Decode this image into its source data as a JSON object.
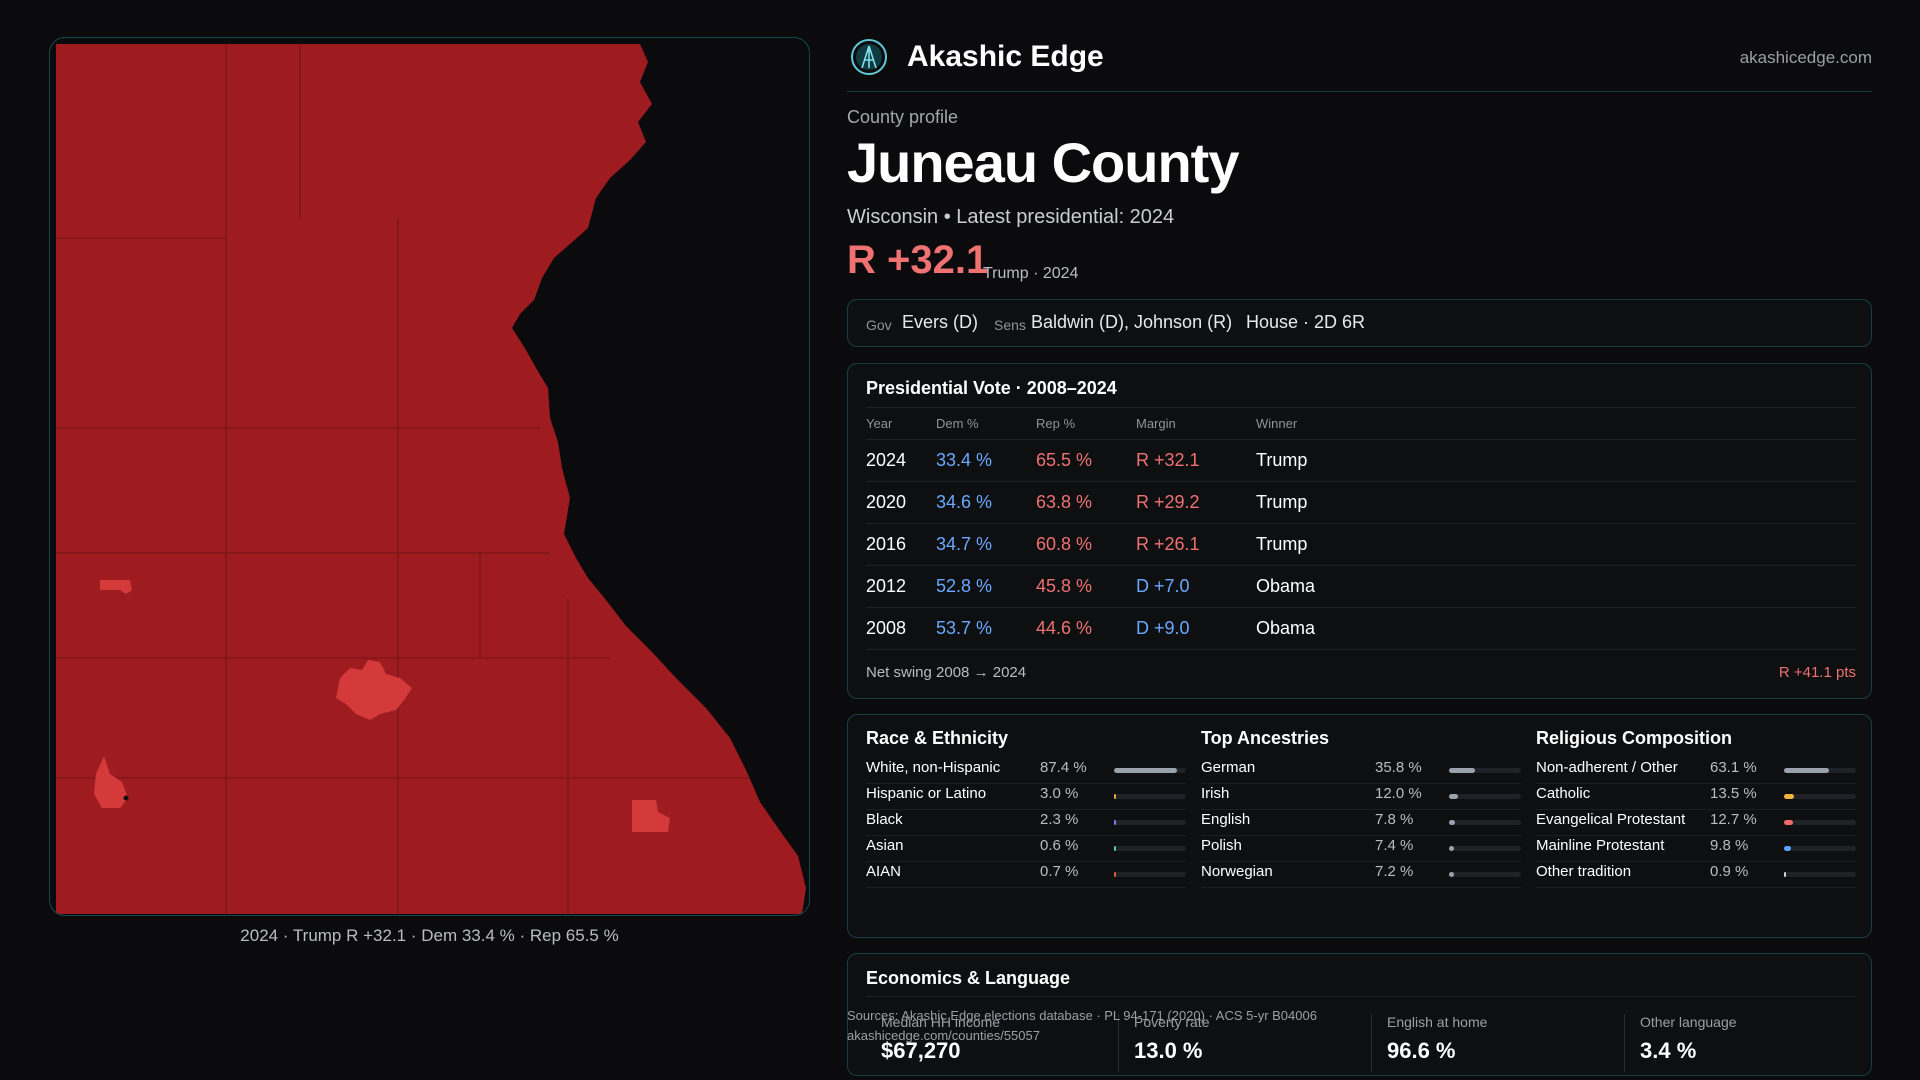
{
  "brand": {
    "name": "Akashic Edge",
    "url": "akashicedge.com"
  },
  "profile": {
    "kicker": "County profile",
    "county": "Juneau County",
    "subtitle": "Wisconsin • Latest presidential: 2024",
    "margin": "R +32.1",
    "margin_note": "Trump · 2024"
  },
  "officials": {
    "gov_label": "Gov",
    "gov": "Evers (D)",
    "sens_label": "Sens",
    "sens": "Baldwin (D), Johnson (R)",
    "house": "House · 2D 6R"
  },
  "presidential": {
    "title": "Presidential Vote · 2008–2024",
    "columns": [
      "Year",
      "Dem %",
      "Rep %",
      "Margin",
      "Winner"
    ],
    "rows": [
      {
        "year": "2024",
        "dem": "33.4 %",
        "rep": "65.5 %",
        "margin": "R +32.1",
        "winner": "Trump",
        "party": "R"
      },
      {
        "year": "2020",
        "dem": "34.6 %",
        "rep": "63.8 %",
        "margin": "R +29.2",
        "winner": "Trump",
        "party": "R"
      },
      {
        "year": "2016",
        "dem": "34.7 %",
        "rep": "60.8 %",
        "margin": "R +26.1",
        "winner": "Trump",
        "party": "R"
      },
      {
        "year": "2012",
        "dem": "52.8 %",
        "rep": "45.8 %",
        "margin": "D +7.0",
        "winner": "Obama",
        "party": "D"
      },
      {
        "year": "2008",
        "dem": "53.7 %",
        "rep": "44.6 %",
        "margin": "D +9.0",
        "winner": "Obama",
        "party": "D"
      }
    ],
    "swing_label": "Net swing 2008 → 2024",
    "swing_value": "R +41.1 pts"
  },
  "race": {
    "title": "Race & Ethnicity",
    "items": [
      {
        "name": "White, non-Hispanic",
        "pct": "87.4 %",
        "value": 87.4,
        "color": "#9aa3ad"
      },
      {
        "name": "Hispanic or Latino",
        "pct": "3.0 %",
        "value": 3.0,
        "color": "#e8a23a"
      },
      {
        "name": "Black",
        "pct": "2.3 %",
        "value": 2.3,
        "color": "#7f7df0"
      },
      {
        "name": "Asian",
        "pct": "0.6 %",
        "value": 0.6,
        "color": "#52c7b8"
      },
      {
        "name": "AIAN",
        "pct": "0.7 %",
        "value": 0.7,
        "color": "#e05a3f"
      }
    ]
  },
  "ancestry": {
    "title": "Top Ancestries",
    "items": [
      {
        "name": "German",
        "pct": "35.8 %",
        "value": 35.8,
        "color": "#9aa3ad"
      },
      {
        "name": "Irish",
        "pct": "12.0 %",
        "value": 12.0,
        "color": "#9aa3ad"
      },
      {
        "name": "English",
        "pct": "7.8 %",
        "value": 7.8,
        "color": "#9aa3ad"
      },
      {
        "name": "Polish",
        "pct": "7.4 %",
        "value": 7.4,
        "color": "#9aa3ad"
      },
      {
        "name": "Norwegian",
        "pct": "7.2 %",
        "value": 7.2,
        "color": "#9aa3ad"
      }
    ]
  },
  "religion": {
    "title": "Religious Composition",
    "items": [
      {
        "name": "Non-adherent / Other",
        "pct": "63.1 %",
        "value": 63.1,
        "color": "#9aa3ad"
      },
      {
        "name": "Catholic",
        "pct": "13.5 %",
        "value": 13.5,
        "color": "#f0b43c"
      },
      {
        "name": "Evangelical Protestant",
        "pct": "12.7 %",
        "value": 12.7,
        "color": "#ef6b6b"
      },
      {
        "name": "Mainline Protestant",
        "pct": "9.8 %",
        "value": 9.8,
        "color": "#5aa2ff"
      },
      {
        "name": "Other tradition",
        "pct": "0.9 %",
        "value": 0.9,
        "color": "#cfd3d8"
      }
    ]
  },
  "economics": {
    "title": "Economics & Language",
    "stats": [
      {
        "label": "Median HH income",
        "value": "$67,270"
      },
      {
        "label": "Poverty rate",
        "value": "13.0 %"
      },
      {
        "label": "English at home",
        "value": "96.6 %"
      },
      {
        "label": "Other language",
        "value": "3.4 %"
      }
    ]
  },
  "sources": {
    "line1": "Sources: Akashic Edge elections database · PL 94-171 (2020) · ACS 5-yr B04006",
    "line2": "akashicedge.com/counties/55057"
  },
  "map": {
    "caption": "2024 · Trump R +32.1 · Dem 33.4 % · Rep 65.5 %",
    "fill_color": "#9e1b20",
    "town_color": "#d43a3a"
  }
}
